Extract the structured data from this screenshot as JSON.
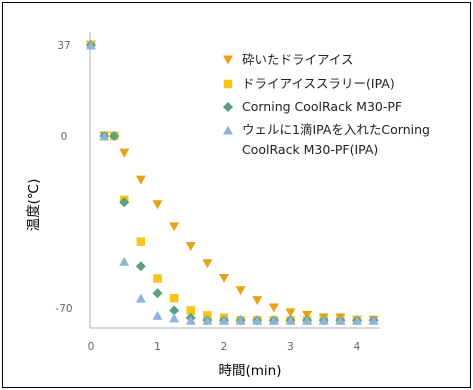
{
  "chart_data": {
    "type": "scatter",
    "xlabel": "時間(min)",
    "ylabel": "温度(℃)",
    "x_ticks": [
      0,
      1,
      2,
      3,
      4
    ],
    "y_ticks": [
      37,
      0,
      -70
    ],
    "xlim": [
      0,
      4.3
    ],
    "ylim": [
      -75,
      40
    ],
    "legend_position": "top-right",
    "series": [
      {
        "name": "砕いたドライアイス",
        "marker": "triangle-down",
        "color": "#E8A21A",
        "x": [
          0.0,
          0.2,
          0.35,
          0.5,
          0.75,
          1.0,
          1.25,
          1.5,
          1.75,
          2.0,
          2.25,
          2.5,
          2.75,
          3.0,
          3.25,
          3.5,
          3.75,
          4.0,
          4.25
        ],
        "y": [
          37,
          0,
          0,
          -7,
          -18,
          -28,
          -37,
          -45,
          -52,
          -58,
          -63,
          -67,
          -70,
          -72,
          -73,
          -74,
          -74,
          -75,
          -75
        ]
      },
      {
        "name": "ドライアイススラリー(IPA)",
        "marker": "square",
        "color": "#F5C518",
        "x": [
          0.0,
          0.35,
          0.5,
          0.75,
          1.0,
          1.25,
          1.5,
          1.75,
          2.0,
          2.25,
          2.5,
          2.75,
          3.0,
          3.25,
          3.5,
          3.75,
          4.0
        ],
        "y": [
          37,
          0,
          -26,
          -43,
          -58,
          -66,
          -71,
          -73,
          -74,
          -75,
          -75,
          -75,
          -75,
          -75,
          -75,
          -75,
          -75
        ]
      },
      {
        "name": "Corning CoolRack M30-PF",
        "marker": "diamond",
        "color": "#5B9E82",
        "x": [
          0.0,
          0.2,
          0.35,
          0.5,
          0.75,
          1.0,
          1.25,
          1.5,
          1.75,
          2.0,
          2.25,
          2.5,
          2.75,
          3.0,
          3.25,
          3.5,
          3.75,
          4.0,
          4.25
        ],
        "y": [
          37,
          0,
          0,
          -27,
          -53,
          -64,
          -71,
          -74,
          -75,
          -75,
          -75,
          -75,
          -75,
          -75,
          -75,
          -75,
          -75,
          -75,
          -75
        ]
      },
      {
        "name": "ウェルに1滴IPAを入れたCorning CoolRack M30-PF(IPA)",
        "marker": "triangle-up",
        "color": "#8FB3D9",
        "x": [
          0.0,
          0.2,
          0.5,
          0.75,
          1.0,
          1.25,
          1.5,
          1.75,
          2.0,
          2.25,
          2.5,
          2.75,
          3.0,
          3.25,
          3.5,
          3.75,
          4.0,
          4.25
        ],
        "y": [
          37,
          0,
          -51,
          -66,
          -73,
          -74,
          -75,
          -75,
          -75,
          -75,
          -75,
          -75,
          -75,
          -75,
          -75,
          -75,
          -75,
          -75
        ]
      }
    ],
    "legend": [
      {
        "lines": [
          "砕いたドライアイス"
        ]
      },
      {
        "lines": [
          "ドライアイススラリー(IPA)"
        ]
      },
      {
        "lines": [
          "Corning CoolRack M30-PF"
        ]
      },
      {
        "lines": [
          "ウェルに1滴IPAを入れたCorning",
          "CoolRack M30-PF(IPA)"
        ]
      }
    ]
  }
}
